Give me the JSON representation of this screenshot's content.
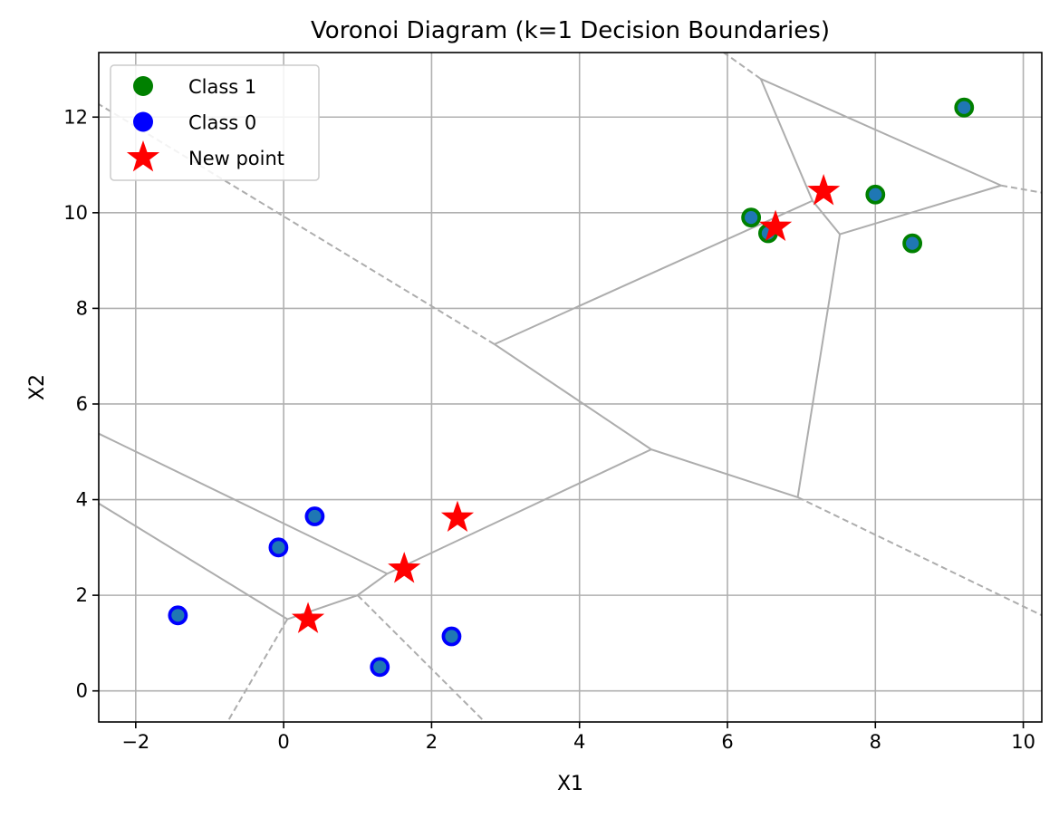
{
  "chart_data": {
    "type": "scatter",
    "title": "Voronoi Diagram (k=1 Decision Boundaries)",
    "xlabel": "X1",
    "ylabel": "X2",
    "xlim": [
      -2.5,
      10.25
    ],
    "ylim": [
      -0.65,
      13.35
    ],
    "xticks": [
      -2,
      0,
      2,
      4,
      6,
      8,
      10
    ],
    "yticks": [
      0,
      2,
      4,
      6,
      8,
      10,
      12
    ],
    "xtick_labels": [
      "−2",
      "0",
      "2",
      "4",
      "6",
      "8",
      "10"
    ],
    "ytick_labels": [
      "0",
      "2",
      "4",
      "6",
      "8",
      "10",
      "12"
    ],
    "grid": true,
    "legend_position": "upper-left",
    "series": [
      {
        "name": "Class 1",
        "marker": "circle",
        "edge_color": "#008000",
        "fill_color": "#1f77b4",
        "points": [
          [
            6.32,
            9.9
          ],
          [
            6.55,
            9.57
          ],
          [
            8.0,
            10.38
          ],
          [
            8.5,
            9.36
          ],
          [
            9.2,
            12.2
          ]
        ]
      },
      {
        "name": "Class 0",
        "marker": "circle",
        "edge_color": "#0000ff",
        "fill_color": "#1f77b4",
        "points": [
          [
            -1.43,
            1.58
          ],
          [
            -0.07,
            3.0
          ],
          [
            0.42,
            3.65
          ],
          [
            1.3,
            0.5
          ],
          [
            2.27,
            1.14
          ]
        ]
      },
      {
        "name": "New point",
        "marker": "star",
        "edge_color": "#ff0000",
        "fill_color": "#ff0000",
        "points": [
          [
            0.33,
            1.5
          ],
          [
            1.63,
            2.55
          ],
          [
            2.35,
            3.62
          ],
          [
            6.65,
            9.7
          ],
          [
            7.3,
            10.45
          ]
        ]
      }
    ],
    "voronoi_solid": [
      [
        [
          7.52,
          9.55
        ],
        [
          6.95,
          4.05
        ]
      ],
      [
        [
          7.52,
          9.55
        ],
        [
          9.7,
          10.57
        ]
      ],
      [
        [
          7.52,
          9.55
        ],
        [
          7.15,
          10.25
        ]
      ],
      [
        [
          7.15,
          10.25
        ],
        [
          6.45,
          12.8
        ]
      ],
      [
        [
          6.45,
          12.8
        ],
        [
          9.7,
          10.57
        ]
      ],
      [
        [
          7.15,
          10.25
        ],
        [
          2.85,
          7.25
        ]
      ],
      [
        [
          2.85,
          7.25
        ],
        [
          4.97,
          5.05
        ]
      ],
      [
        [
          4.97,
          5.05
        ],
        [
          6.95,
          4.05
        ]
      ],
      [
        [
          4.97,
          5.05
        ],
        [
          1.4,
          2.45
        ]
      ],
      [
        [
          1.4,
          2.45
        ],
        [
          1.0,
          2.0
        ]
      ],
      [
        [
          1.4,
          2.45
        ],
        [
          -2.5,
          5.38
        ]
      ],
      [
        [
          1.0,
          2.0
        ],
        [
          0.05,
          1.5
        ]
      ],
      [
        [
          0.05,
          1.5
        ],
        [
          -2.5,
          3.92
        ]
      ]
    ],
    "voronoi_dashed": [
      [
        [
          6.45,
          12.8
        ],
        [
          5.95,
          13.35
        ]
      ],
      [
        [
          9.7,
          10.57
        ],
        [
          10.25,
          10.42
        ]
      ],
      [
        [
          2.85,
          7.25
        ],
        [
          -2.5,
          12.27
        ]
      ],
      [
        [
          6.95,
          4.05
        ],
        [
          10.25,
          1.58
        ]
      ],
      [
        [
          1.0,
          2.0
        ],
        [
          2.72,
          -0.65
        ]
      ],
      [
        [
          0.05,
          1.5
        ],
        [
          -0.76,
          -0.65
        ]
      ]
    ]
  }
}
